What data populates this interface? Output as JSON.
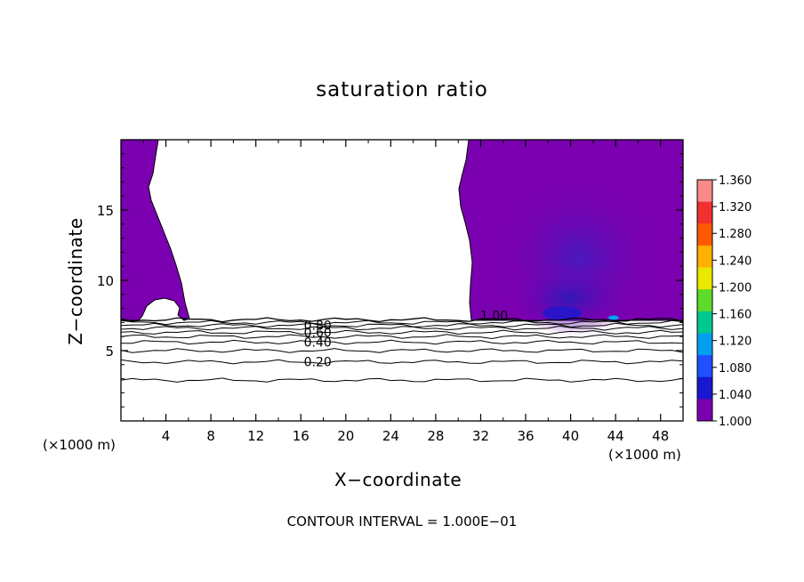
{
  "chart_data": {
    "type": "heatmap",
    "title": "saturation ratio",
    "xlabel": "X−coordinate",
    "ylabel": "Z−coordinate",
    "x_unit_left": "(×1000 m)",
    "x_unit_right": "(×1000 m)",
    "footer": "CONTOUR INTERVAL = 1.000E−01",
    "xlim": [
      0,
      50
    ],
    "ylim": [
      0,
      20
    ],
    "x_ticks": [
      4,
      8,
      12,
      16,
      20,
      24,
      28,
      32,
      36,
      40,
      44,
      48
    ],
    "y_ticks": [
      5,
      10,
      15
    ],
    "colorbar": {
      "min": 1.0,
      "max": 1.36,
      "ticks": [
        "1.360",
        "1.320",
        "1.280",
        "1.240",
        "1.200",
        "1.160",
        "1.120",
        "1.080",
        "1.040",
        "1.000"
      ],
      "colors": [
        "#f88a8a",
        "#f23030",
        "#ff5a00",
        "#ffb000",
        "#e8e800",
        "#5cdc28",
        "#00c890",
        "#00a0f0",
        "#2050ff",
        "#1818d0",
        "#7a00b0"
      ]
    },
    "contour_levels": [
      0.1,
      0.2,
      0.3,
      0.4,
      0.5,
      0.6,
      0.7,
      0.8,
      0.9,
      1.0
    ],
    "contour_labels": [
      {
        "text": "0.80",
        "x": 17.5,
        "z": 6.8
      },
      {
        "text": "0.60",
        "x": 17.5,
        "z": 6.3
      },
      {
        "text": "0.40",
        "x": 17.5,
        "z": 5.6
      },
      {
        "text": "0.20",
        "x": 17.5,
        "z": 4.2
      },
      {
        "text": "1.00",
        "x": 33.2,
        "z": 7.5
      }
    ],
    "supersaturated_regions": [
      {
        "name": "left",
        "x_range": [
          0,
          6
        ],
        "z_range": [
          7.2,
          20
        ],
        "value": 1.0
      },
      {
        "name": "right",
        "x_range": [
          30,
          50
        ],
        "z_range": [
          7.2,
          20
        ],
        "value_range": [
          1.0,
          1.06
        ]
      }
    ]
  }
}
